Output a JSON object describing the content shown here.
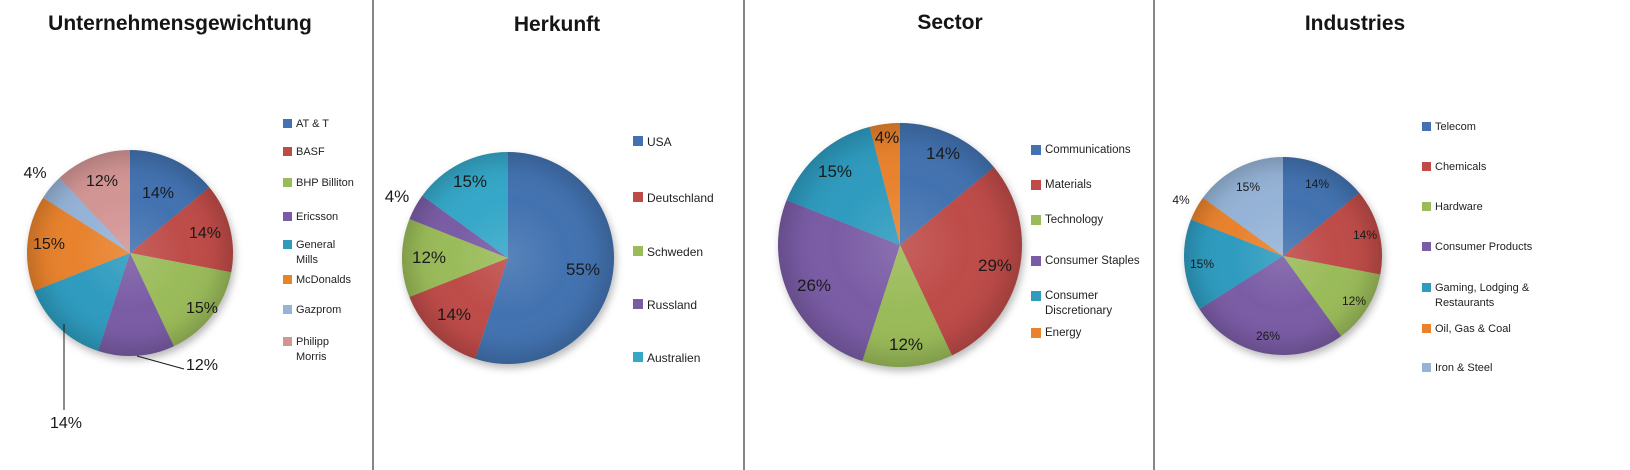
{
  "panels": [
    {
      "title": "Unternehmensgewichtung",
      "chart_data": {
        "type": "pie",
        "legend_position": "right",
        "slices": [
          {
            "label": "AT & T",
            "value": 14,
            "pct_label": "14%",
            "color": "#4272B0"
          },
          {
            "label": "BASF",
            "value": 14,
            "pct_label": "14%",
            "color": "#BE4B48"
          },
          {
            "label": "BHP Billiton",
            "value": 15,
            "pct_label": "15%",
            "color": "#9ABB59"
          },
          {
            "label": "Ericsson",
            "value": 12,
            "pct_label": "12%",
            "color": "#7A5CA5"
          },
          {
            "label": "General Mills",
            "value": 14,
            "pct_label": "14%",
            "color": "#2E9BBF"
          },
          {
            "label": "McDonalds",
            "value": 15,
            "pct_label": "15%",
            "color": "#E8822D"
          },
          {
            "label": "Gazprom",
            "value": 4,
            "pct_label": "4%",
            "color": "#95B3D7"
          },
          {
            "label": "Philipp Morris",
            "value": 12,
            "pct_label": "12%",
            "color": "#D29594"
          }
        ]
      }
    },
    {
      "title": "Herkunft",
      "chart_data": {
        "type": "pie",
        "legend_position": "right",
        "slices": [
          {
            "label": "USA",
            "value": 55,
            "pct_label": "55%",
            "color": "#4272B0"
          },
          {
            "label": "Deutschland",
            "value": 14,
            "pct_label": "14%",
            "color": "#BE4B48"
          },
          {
            "label": "Schweden",
            "value": 12,
            "pct_label": "12%",
            "color": "#9ABB59"
          },
          {
            "label": "Russland",
            "value": 4,
            "pct_label": "4%",
            "color": "#7A5CA5"
          },
          {
            "label": "Australien",
            "value": 15,
            "pct_label": "15%",
            "color": "#35A7C8"
          }
        ]
      }
    },
    {
      "title": "Sector",
      "chart_data": {
        "type": "pie",
        "legend_position": "right",
        "slices": [
          {
            "label": "Communications",
            "value": 14,
            "pct_label": "14%",
            "color": "#4272B0"
          },
          {
            "label": "Materials",
            "value": 29,
            "pct_label": "29%",
            "color": "#BE4B48"
          },
          {
            "label": "Technology",
            "value": 12,
            "pct_label": "12%",
            "color": "#9ABB59"
          },
          {
            "label": "Consumer Staples",
            "value": 26,
            "pct_label": "26%",
            "color": "#7A5CA5"
          },
          {
            "label": "Consumer Discretionary",
            "value": 15,
            "pct_label": "15%",
            "color": "#2E9BBF"
          },
          {
            "label": "Energy",
            "value": 4,
            "pct_label": "4%",
            "color": "#E8822D"
          }
        ]
      }
    },
    {
      "title": "Industries",
      "chart_data": {
        "type": "pie",
        "legend_position": "right",
        "slices": [
          {
            "label": "Telecom",
            "value": 14,
            "pct_label": "14%",
            "color": "#4272B0"
          },
          {
            "label": "Chemicals",
            "value": 14,
            "pct_label": "14%",
            "color": "#BE4B48"
          },
          {
            "label": "Hardware",
            "value": 12,
            "pct_label": "12%",
            "color": "#9ABB59"
          },
          {
            "label": "Consumer Products",
            "value": 26,
            "pct_label": "26%",
            "color": "#7A5CA5"
          },
          {
            "label": "Gaming, Lodging & Restaurants",
            "value": 15,
            "pct_label": "15%",
            "color": "#2E9BBF"
          },
          {
            "label": "Oil, Gas & Coal",
            "value": 4,
            "pct_label": "4%",
            "color": "#E8822D"
          },
          {
            "label": "Iron & Steel",
            "value": 15,
            "pct_label": "15%",
            "color": "#95B3D7"
          }
        ]
      }
    }
  ]
}
